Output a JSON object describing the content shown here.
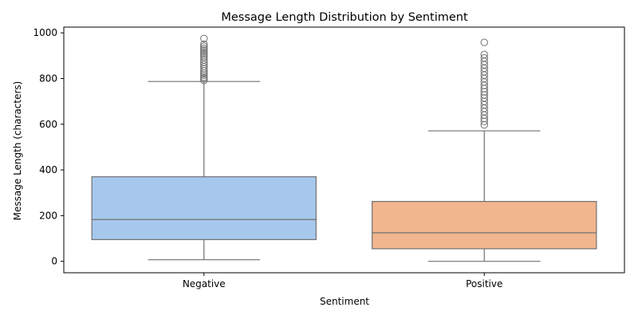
{
  "chart_data": {
    "type": "box",
    "title": "Message Length Distribution by Sentiment",
    "xlabel": "Sentiment",
    "ylabel": "Message Length (characters)",
    "ylim": [
      -50,
      1025
    ],
    "yticks": [
      0,
      200,
      400,
      600,
      800,
      1000
    ],
    "grid": false,
    "categories": [
      "Negative",
      "Positive"
    ],
    "boxes": [
      {
        "name": "Negative",
        "color": "#a6c8ed",
        "whisker_low": 7,
        "q1": 95,
        "median": 183,
        "q3": 370,
        "whisker_high": 787,
        "outliers": [
          792,
          800,
          806,
          815,
          824,
          833,
          842,
          852,
          862,
          872,
          882,
          892,
          900,
          908,
          916,
          924,
          932,
          941,
          950,
          975
        ]
      },
      {
        "name": "Positive",
        "color": "#f2b68f",
        "whisker_low": 0,
        "q1": 55,
        "median": 125,
        "q3": 262,
        "whisker_high": 571,
        "outliers": [
          597,
          612,
          625,
          640,
          655,
          670,
          685,
          700,
          715,
          728,
          742,
          756,
          770,
          785,
          800,
          815,
          830,
          845,
          860,
          875,
          890,
          905,
          958
        ]
      }
    ],
    "style": {
      "line_color": "#707070",
      "outlier_edge": "#707070"
    }
  }
}
